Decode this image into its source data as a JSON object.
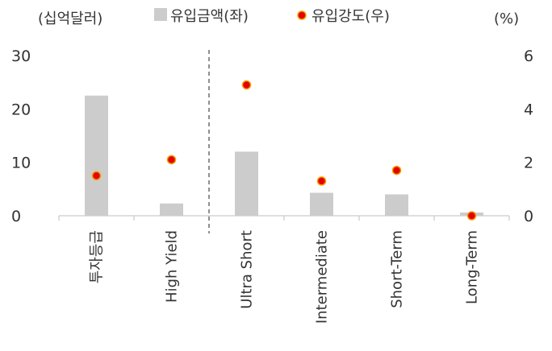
{
  "chart_data": {
    "type": "bar",
    "categories": [
      "투자등급",
      "High Yield",
      "Ultra Short",
      "Intermediate",
      "Short-Term",
      "Long-Term"
    ],
    "series": [
      {
        "name": "유입금액(좌)",
        "type": "bar",
        "axis": "left",
        "values": [
          22.5,
          2.3,
          12.0,
          4.3,
          4.0,
          0.6
        ]
      },
      {
        "name": "유입강도(우)",
        "type": "scatter",
        "axis": "right",
        "values": [
          1.5,
          2.1,
          4.9,
          1.3,
          1.7,
          0.0
        ]
      }
    ],
    "left_axis": {
      "unit_label": "(십억달러)",
      "ylim": [
        0,
        30
      ],
      "ticks": [
        "0",
        "10",
        "20",
        "30"
      ]
    },
    "right_axis": {
      "unit_label": "(%)",
      "ylim": [
        0,
        6
      ],
      "ticks": [
        "0",
        "2",
        "4",
        "6"
      ]
    },
    "divider_after_category": "High Yield",
    "legend_placement": "top-center",
    "grid": false,
    "colors": {
      "bar": "#cccccc",
      "marker_fill": "#e60000",
      "marker_stroke": "#f0a000",
      "axis": "#bfbfbf",
      "divider": "#555555",
      "text": "#333333"
    }
  }
}
